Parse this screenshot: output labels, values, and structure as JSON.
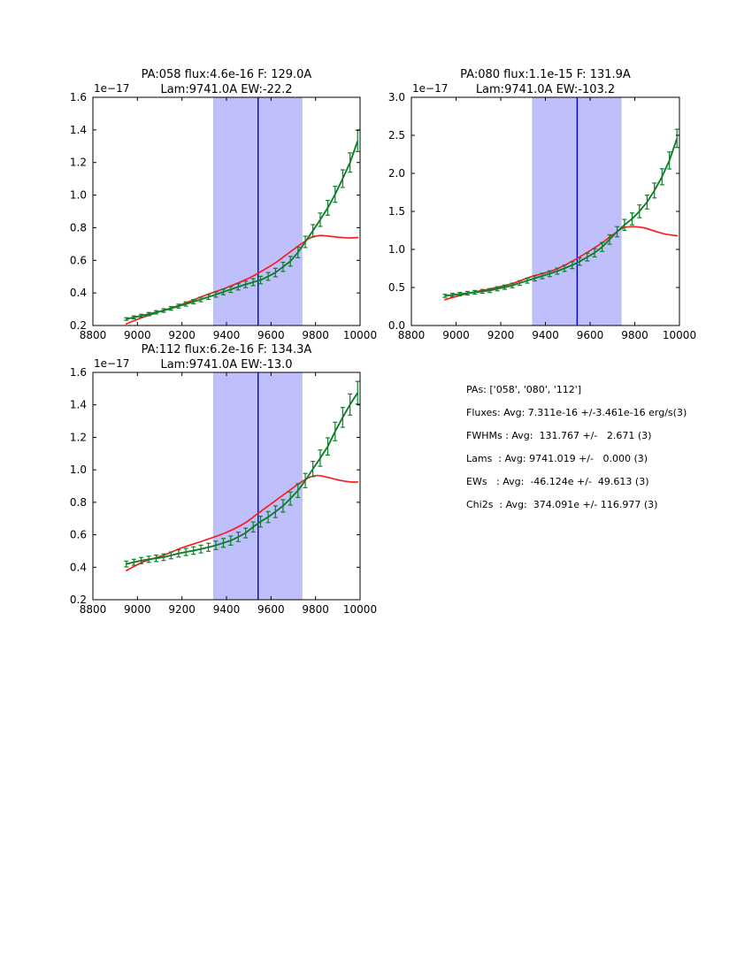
{
  "figure": {
    "background": "#ffffff",
    "colors": {
      "spectrum_green": "#0e7e2b",
      "model_red": "#fa1d1d",
      "band_fill": "#bfbffc",
      "center_line": "#0000cc",
      "axis": "#000000"
    }
  },
  "stats_panel": {
    "lines": [
      "PAs: ['058', '080', '112']",
      "Fluxes: Avg: 7.311e-16 +/-3.461e-16 erg/s(3)",
      "FWHMs : Avg:  131.767 +/-   2.671 (3)",
      "Lams  : Avg: 9741.019 +/-   0.000 (3)",
      "EWs   : Avg:  -46.124e +/-  49.613 (3)",
      "Chi2s  : Avg:  374.091e +/- 116.977 (3)"
    ]
  },
  "chart_data": [
    {
      "type": "line",
      "title_line1": "PA:058 flux:4.6e-16 F: 129.0A",
      "title_line2": "Lam:9741.0A EW:-22.2",
      "offset_label": "1e−17",
      "xlim": [
        8800,
        10000
      ],
      "ylim": [
        0.2,
        1.6
      ],
      "xticks": [
        8800,
        9000,
        9200,
        9400,
        9600,
        9800,
        10000
      ],
      "xtick_labels": [
        "8800",
        "9000",
        "9200",
        "9400",
        "9600",
        "9800",
        "10000"
      ],
      "yticks": [
        0.2,
        0.4,
        0.6,
        0.8,
        1.0,
        1.2,
        1.4,
        1.6
      ],
      "ytick_labels": [
        "0.2",
        "0.4",
        "0.6",
        "0.8",
        "1.0",
        "1.2",
        "1.4",
        "1.6"
      ],
      "band": [
        9340,
        9741
      ],
      "center_line_x": 9542,
      "series": [
        {
          "name": "observed-spectrum",
          "x": [
            8950,
            8984,
            9017,
            9051,
            9084,
            9118,
            9151,
            9185,
            9218,
            9252,
            9285,
            9319,
            9352,
            9386,
            9419,
            9453,
            9486,
            9520,
            9553,
            9587,
            9620,
            9654,
            9687,
            9721,
            9754,
            9788,
            9821,
            9855,
            9888,
            9922,
            9955,
            9989
          ],
          "y": [
            0.24,
            0.25,
            0.26,
            0.27,
            0.281,
            0.292,
            0.305,
            0.319,
            0.332,
            0.346,
            0.36,
            0.375,
            0.39,
            0.406,
            0.421,
            0.437,
            0.452,
            0.466,
            0.479,
            0.501,
            0.525,
            0.56,
            0.594,
            0.648,
            0.713,
            0.781,
            0.849,
            0.922,
            1.005,
            1.101,
            1.2,
            1.332
          ],
          "yerr": [
            0.008,
            0.009,
            0.009,
            0.01,
            0.01,
            0.011,
            0.011,
            0.012,
            0.013,
            0.013,
            0.014,
            0.015,
            0.016,
            0.017,
            0.018,
            0.019,
            0.02,
            0.021,
            0.023,
            0.024,
            0.026,
            0.028,
            0.03,
            0.032,
            0.035,
            0.038,
            0.041,
            0.045,
            0.049,
            0.054,
            0.059,
            0.065
          ]
        },
        {
          "name": "model-fit",
          "x": [
            8950,
            9000,
            9050,
            9100,
            9200,
            9300,
            9400,
            9500,
            9560,
            9620,
            9680,
            9740,
            9780,
            9820,
            9860,
            9900,
            9950,
            9990
          ],
          "y": [
            0.21,
            0.238,
            0.262,
            0.285,
            0.33,
            0.383,
            0.432,
            0.49,
            0.535,
            0.585,
            0.645,
            0.705,
            0.74,
            0.752,
            0.748,
            0.742,
            0.737,
            0.74
          ]
        }
      ]
    },
    {
      "type": "line",
      "title_line1": "PA:080 flux:1.1e-15 F: 131.9A",
      "title_line2": "Lam:9741.0A EW:-103.2",
      "offset_label": "1e−17",
      "xlim": [
        8800,
        10000
      ],
      "ylim": [
        0.0,
        3.0
      ],
      "xticks": [
        8800,
        9000,
        9200,
        9400,
        9600,
        9800,
        10000
      ],
      "xtick_labels": [
        "8800",
        "9000",
        "9200",
        "9400",
        "9600",
        "9800",
        "10000"
      ],
      "yticks": [
        0.0,
        0.5,
        1.0,
        1.5,
        2.0,
        2.5,
        3.0
      ],
      "ytick_labels": [
        "0.0",
        "0.5",
        "1.0",
        "1.5",
        "2.0",
        "2.5",
        "3.0"
      ],
      "band": [
        9340,
        9741
      ],
      "center_line_x": 9542,
      "series": [
        {
          "name": "observed-spectrum",
          "x": [
            8950,
            8984,
            9017,
            9051,
            9084,
            9118,
            9151,
            9185,
            9218,
            9252,
            9285,
            9319,
            9352,
            9386,
            9419,
            9453,
            9486,
            9520,
            9553,
            9587,
            9620,
            9654,
            9687,
            9721,
            9754,
            9788,
            9821,
            9855,
            9888,
            9922,
            9955,
            9989
          ],
          "y": [
            0.39,
            0.402,
            0.413,
            0.425,
            0.437,
            0.449,
            0.46,
            0.483,
            0.504,
            0.527,
            0.558,
            0.59,
            0.621,
            0.651,
            0.681,
            0.715,
            0.753,
            0.793,
            0.841,
            0.899,
            0.956,
            1.032,
            1.131,
            1.233,
            1.323,
            1.402,
            1.501,
            1.623,
            1.775,
            1.955,
            2.17,
            2.46
          ],
          "yerr": [
            0.02,
            0.021,
            0.022,
            0.023,
            0.024,
            0.025,
            0.026,
            0.027,
            0.028,
            0.03,
            0.031,
            0.033,
            0.034,
            0.036,
            0.038,
            0.04,
            0.042,
            0.045,
            0.048,
            0.051,
            0.054,
            0.058,
            0.062,
            0.067,
            0.072,
            0.078,
            0.084,
            0.091,
            0.098,
            0.105,
            0.112,
            0.12
          ]
        },
        {
          "name": "model-fit",
          "x": [
            8950,
            9050,
            9150,
            9250,
            9340,
            9440,
            9535,
            9640,
            9700,
            9745,
            9790,
            9840,
            9890,
            9940,
            9989
          ],
          "y": [
            0.34,
            0.42,
            0.48,
            0.55,
            0.645,
            0.73,
            0.87,
            1.06,
            1.19,
            1.28,
            1.3,
            1.285,
            1.24,
            1.2,
            1.18
          ]
        }
      ]
    },
    {
      "type": "line",
      "title_line1": "PA:112 flux:6.2e-16 F: 134.3A",
      "title_line2": "Lam:9741.0A EW:-13.0",
      "offset_label": "1e−17",
      "xlim": [
        8800,
        10000
      ],
      "ylim": [
        0.2,
        1.6
      ],
      "xticks": [
        8800,
        9000,
        9200,
        9400,
        9600,
        9800,
        10000
      ],
      "xtick_labels": [
        "8800",
        "9000",
        "9200",
        "9400",
        "9600",
        "9800",
        "10000"
      ],
      "yticks": [
        0.2,
        0.4,
        0.6,
        0.8,
        1.0,
        1.2,
        1.4,
        1.6
      ],
      "ytick_labels": [
        "0.2",
        "0.4",
        "0.6",
        "0.8",
        "1.0",
        "1.2",
        "1.4",
        "1.6"
      ],
      "band": [
        9340,
        9741
      ],
      "center_line_x": 9542,
      "series": [
        {
          "name": "observed-spectrum",
          "x": [
            8950,
            8984,
            9017,
            9051,
            9084,
            9118,
            9151,
            9185,
            9218,
            9252,
            9285,
            9319,
            9352,
            9386,
            9419,
            9453,
            9486,
            9520,
            9553,
            9587,
            9620,
            9654,
            9687,
            9721,
            9754,
            9788,
            9821,
            9855,
            9888,
            9922,
            9955,
            9989
          ],
          "y": [
            0.42,
            0.431,
            0.441,
            0.449,
            0.455,
            0.462,
            0.473,
            0.485,
            0.494,
            0.503,
            0.512,
            0.523,
            0.535,
            0.55,
            0.564,
            0.587,
            0.611,
            0.648,
            0.681,
            0.709,
            0.742,
            0.778,
            0.823,
            0.872,
            0.934,
            1.005,
            1.072,
            1.144,
            1.236,
            1.323,
            1.402,
            1.475
          ],
          "yerr": [
            0.018,
            0.018,
            0.019,
            0.019,
            0.02,
            0.02,
            0.021,
            0.022,
            0.022,
            0.023,
            0.024,
            0.025,
            0.026,
            0.027,
            0.028,
            0.029,
            0.03,
            0.031,
            0.033,
            0.034,
            0.036,
            0.038,
            0.04,
            0.042,
            0.044,
            0.047,
            0.05,
            0.053,
            0.057,
            0.061,
            0.065,
            0.07
          ]
        },
        {
          "name": "model-fit",
          "x": [
            8950,
            9030,
            9120,
            9200,
            9300,
            9400,
            9480,
            9540,
            9600,
            9660,
            9720,
            9770,
            9810,
            9860,
            9910,
            9960,
            9989
          ],
          "y": [
            0.38,
            0.435,
            0.475,
            0.52,
            0.565,
            0.615,
            0.67,
            0.73,
            0.79,
            0.85,
            0.91,
            0.952,
            0.965,
            0.952,
            0.935,
            0.925,
            0.925
          ]
        }
      ]
    }
  ]
}
